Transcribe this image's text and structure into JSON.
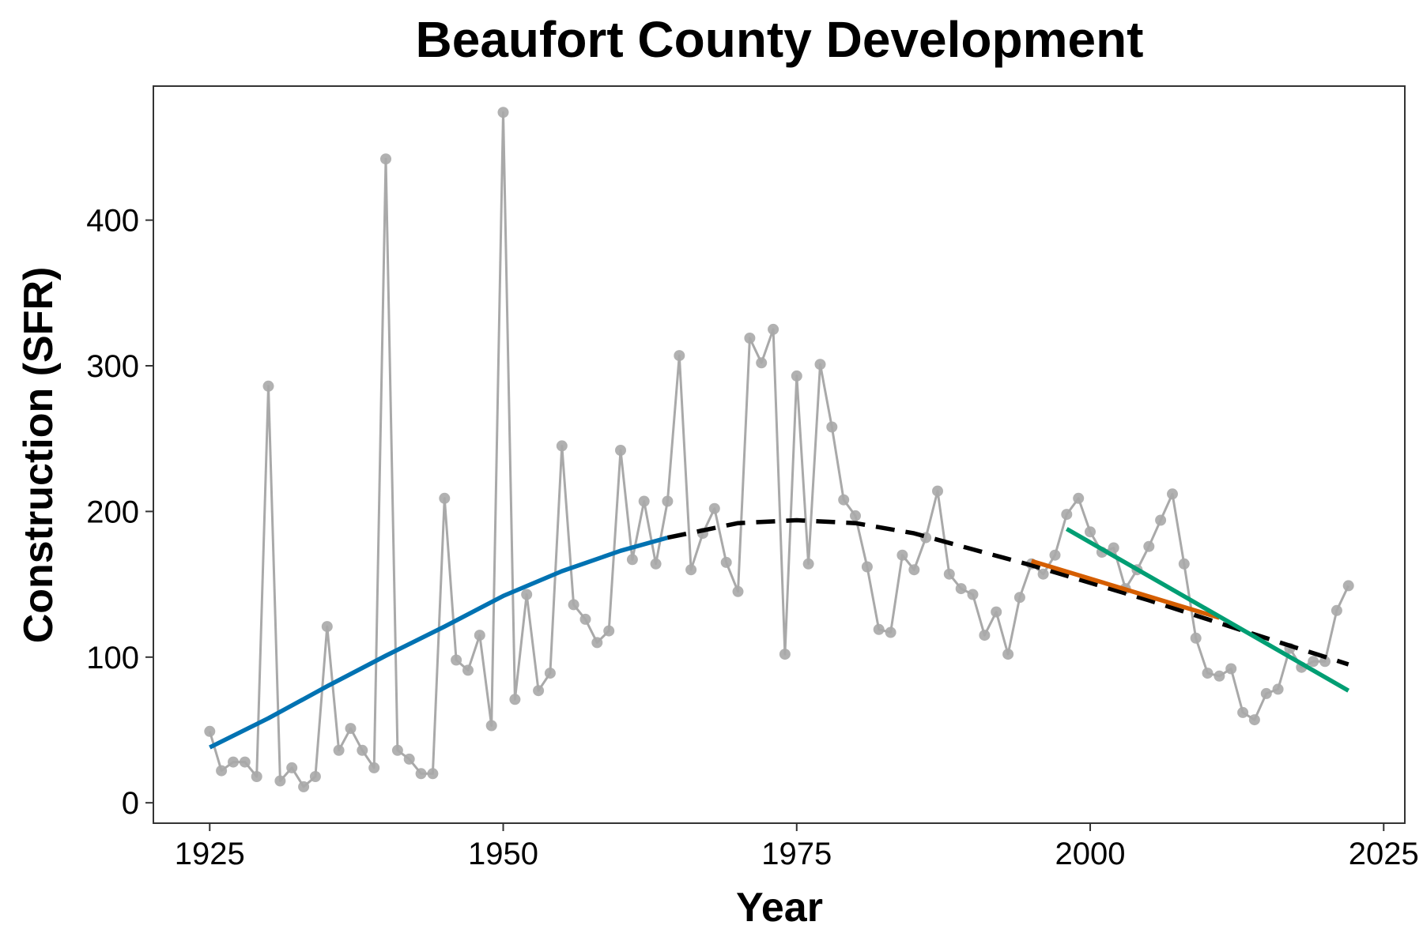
{
  "chart_data": {
    "type": "line",
    "title": "Beaufort County Development",
    "xlabel": "Year",
    "ylabel": "Construction (SFR)",
    "xlim": [
      1920.2,
      2026.8
    ],
    "ylim": [
      -14,
      492
    ],
    "x_ticks": [
      1925,
      1950,
      1975,
      2000,
      2025
    ],
    "y_ticks": [
      0,
      100,
      200,
      300,
      400
    ],
    "grid": false,
    "colors": {
      "observed": "#a9a9a9",
      "fit_early": "#0072b2",
      "fit_overall": "#000000",
      "fit_recent_a": "#d55e00",
      "fit_recent_b": "#009e73"
    },
    "series": [
      {
        "name": "observed",
        "style": "line+points",
        "x": [
          1925,
          1926,
          1927,
          1928,
          1929,
          1930,
          1931,
          1932,
          1933,
          1934,
          1935,
          1936,
          1937,
          1938,
          1939,
          1940,
          1941,
          1942,
          1943,
          1944,
          1945,
          1946,
          1947,
          1948,
          1949,
          1950,
          1951,
          1952,
          1953,
          1954,
          1955,
          1956,
          1957,
          1958,
          1959,
          1960,
          1961,
          1962,
          1963,
          1964,
          1965,
          1966,
          1967,
          1968,
          1969,
          1970,
          1971,
          1972,
          1973,
          1974,
          1975,
          1976,
          1977,
          1978,
          1979,
          1980,
          1981,
          1982,
          1983,
          1984,
          1985,
          1986,
          1987,
          1988,
          1989,
          1990,
          1991,
          1992,
          1993,
          1994,
          1995,
          1996,
          1997,
          1998,
          1999,
          2000,
          2001,
          2002,
          2003,
          2004,
          2005,
          2006,
          2007,
          2008,
          2009,
          2010,
          2011,
          2012,
          2013,
          2014,
          2015,
          2016,
          2017,
          2018,
          2019,
          2020,
          2021,
          2022
        ],
        "values": [
          49,
          22,
          28,
          28,
          18,
          286,
          15,
          24,
          11,
          18,
          121,
          36,
          51,
          36,
          24,
          442,
          36,
          30,
          20,
          20,
          209,
          98,
          91,
          115,
          53,
          474,
          71,
          143,
          77,
          89,
          245,
          136,
          126,
          110,
          118,
          242,
          167,
          207,
          164,
          207,
          307,
          160,
          185,
          202,
          165,
          145,
          319,
          302,
          325,
          102,
          293,
          164,
          301,
          258,
          208,
          197,
          162,
          119,
          117,
          170,
          160,
          182,
          214,
          157,
          147,
          143,
          115,
          131,
          102,
          141,
          164,
          157,
          170,
          198,
          209,
          186,
          172,
          175,
          147,
          160,
          176,
          194,
          212,
          164,
          113,
          89,
          87,
          92,
          62,
          57,
          75,
          78,
          106,
          93,
          97,
          97,
          132,
          149
        ]
      },
      {
        "name": "trend 1925-1964",
        "style": "solid",
        "x": [
          1925,
          1930,
          1935,
          1940,
          1945,
          1950,
          1955,
          1960,
          1964
        ],
        "values": [
          38,
          58,
          80,
          101,
          121,
          142,
          159,
          173,
          182
        ]
      },
      {
        "name": "trend 1964-2022",
        "style": "dashed",
        "x": [
          1964,
          1970,
          1975,
          1980,
          1985,
          1990,
          1995,
          2000,
          2005,
          2010,
          2015,
          2022
        ],
        "values": [
          182,
          192,
          194,
          192,
          185,
          174,
          163,
          151,
          139,
          126,
          113,
          95
        ]
      },
      {
        "name": "trend 1995-2011",
        "style": "solid",
        "x": [
          1995,
          2011
        ],
        "values": [
          166,
          127
        ]
      },
      {
        "name": "trend 1998-2022",
        "style": "solid",
        "x": [
          1998,
          2022
        ],
        "values": [
          188,
          77
        ]
      }
    ]
  }
}
